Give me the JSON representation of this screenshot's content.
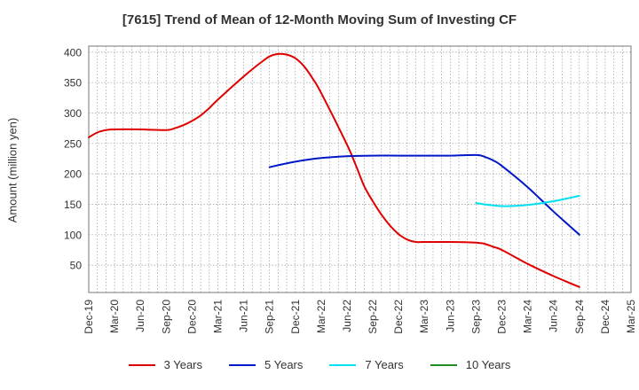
{
  "chart_data": {
    "type": "line",
    "title": "[7615]  Trend of Mean of 12-Month Moving Sum of Investing CF",
    "xlabel": "",
    "ylabel": "Amount (million yen)",
    "categories": [
      "Dec-19",
      "Mar-20",
      "Jun-20",
      "Sep-20",
      "Dec-20",
      "Mar-21",
      "Jun-21",
      "Sep-21",
      "Dec-21",
      "Mar-22",
      "Jun-22",
      "Sep-22",
      "Dec-22",
      "Mar-23",
      "Jun-23",
      "Sep-23",
      "Dec-23",
      "Mar-24",
      "Jun-24",
      "Sep-24",
      "Dec-24",
      "Mar-25"
    ],
    "yticks": [
      50,
      100,
      150,
      200,
      250,
      300,
      350,
      400
    ],
    "ylim": [
      5,
      410
    ],
    "grid": true,
    "legend_position": "bottom",
    "series": [
      {
        "name": "3 Years",
        "color": "#e00000",
        "points": [
          [
            "Dec-19",
            260
          ],
          [
            "Jan-20",
            268
          ],
          [
            "Feb-20",
            272
          ],
          [
            "Mar-20",
            273
          ],
          [
            "Jun-20",
            273
          ],
          [
            "Sep-20",
            272
          ],
          [
            "Oct-20",
            275
          ],
          [
            "Nov-20",
            280
          ],
          [
            "Dec-20",
            287
          ],
          [
            "Jan-21",
            296
          ],
          [
            "Feb-21",
            308
          ],
          [
            "Mar-21",
            322
          ],
          [
            "Jun-21",
            360
          ],
          [
            "Jul-21",
            372
          ],
          [
            "Aug-21",
            383
          ],
          [
            "Sep-21",
            393
          ],
          [
            "Oct-21",
            397
          ],
          [
            "Nov-21",
            396
          ],
          [
            "Dec-21",
            390
          ],
          [
            "Jan-22",
            377
          ],
          [
            "Feb-22",
            357
          ],
          [
            "Mar-22",
            333
          ],
          [
            "Jun-22",
            248
          ],
          [
            "Jul-22",
            215
          ],
          [
            "Aug-22",
            180
          ],
          [
            "Sep-22",
            155
          ],
          [
            "Oct-22",
            133
          ],
          [
            "Nov-22",
            115
          ],
          [
            "Dec-22",
            101
          ],
          [
            "Jan-23",
            92
          ],
          [
            "Feb-23",
            88
          ],
          [
            "Mar-23",
            88
          ],
          [
            "Jun-23",
            88
          ],
          [
            "Sep-23",
            87
          ],
          [
            "Oct-23",
            85
          ],
          [
            "Nov-23",
            80
          ],
          [
            "Dec-23",
            75
          ],
          [
            "Mar-24",
            52
          ],
          [
            "Jun-24",
            32
          ],
          [
            "Sep-24",
            14
          ]
        ]
      },
      {
        "name": "5 Years",
        "color": "#0018c8",
        "points": [
          [
            "Sep-21",
            211
          ],
          [
            "Dec-21",
            220
          ],
          [
            "Mar-22",
            226
          ],
          [
            "Jun-22",
            229
          ],
          [
            "Sep-22",
            230
          ],
          [
            "Dec-22",
            230
          ],
          [
            "Mar-23",
            230
          ],
          [
            "Jun-23",
            230
          ],
          [
            "Sep-23",
            231
          ],
          [
            "Oct-23",
            228
          ],
          [
            "Nov-23",
            222
          ],
          [
            "Dec-23",
            213
          ],
          [
            "Mar-24",
            178
          ],
          [
            "Jun-24",
            138
          ],
          [
            "Sep-24",
            100
          ]
        ]
      },
      {
        "name": "7 Years",
        "color": "#00e0f0",
        "points": [
          [
            "Sep-23",
            152
          ],
          [
            "Dec-23",
            147
          ],
          [
            "Mar-24",
            149
          ],
          [
            "Jun-24",
            155
          ],
          [
            "Sep-24",
            164
          ]
        ]
      },
      {
        "name": "10 Years",
        "color": "#228b22",
        "points": []
      }
    ]
  }
}
